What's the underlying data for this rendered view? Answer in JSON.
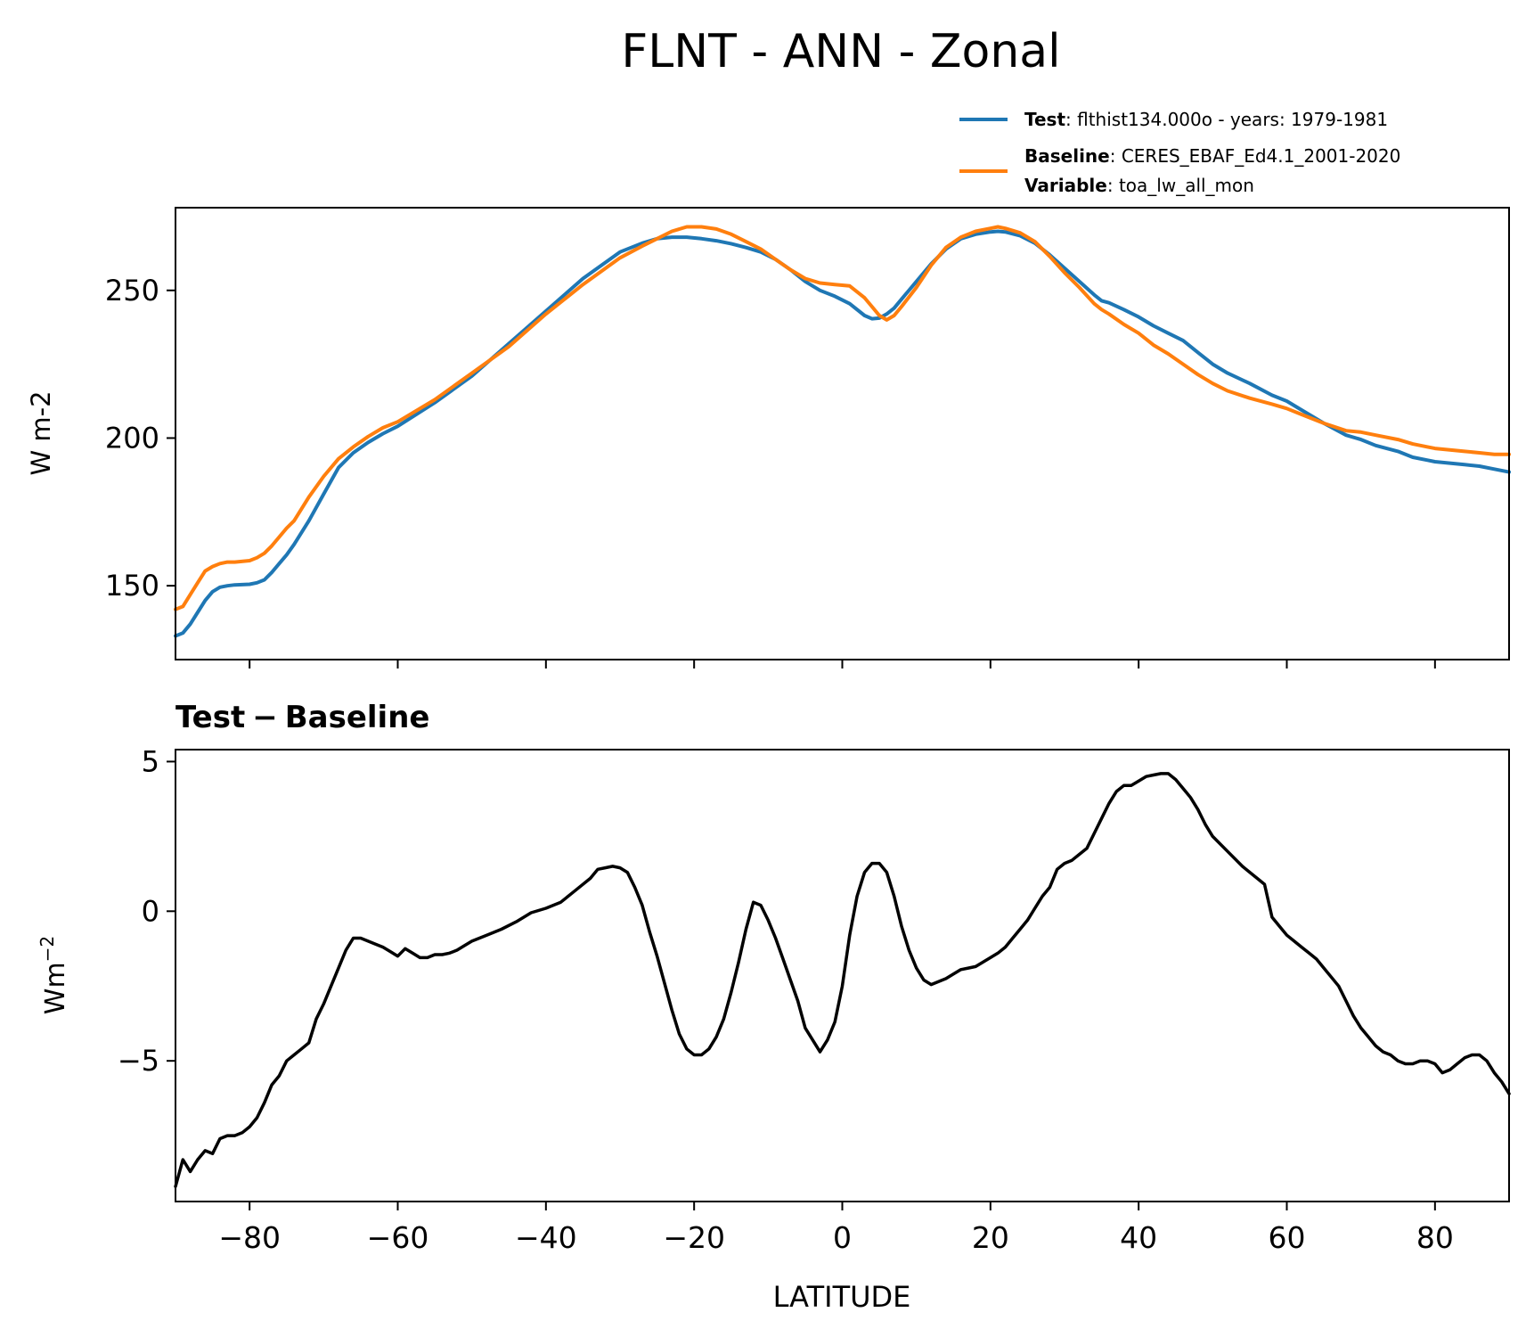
{
  "figure": {
    "title": "FLNT - ANN - Zonal"
  },
  "legend": {
    "test_label": "Test",
    "test_text": ": flthist134.000o - years: 1979-1981",
    "baseline_label": "Baseline",
    "baseline_text": ": CERES_EBAF_Ed4.1_2001-2020",
    "variable_label": "Variable",
    "variable_text": ": toa_lw_all_mon"
  },
  "chart_data": [
    {
      "type": "line",
      "ylabel": "W m-2",
      "xlim": [
        -90,
        90
      ],
      "ylim": [
        125,
        278
      ],
      "yticks": [
        150,
        200,
        250
      ],
      "xticks": [
        -80,
        -60,
        -40,
        -20,
        0,
        20,
        40,
        60,
        80
      ],
      "show_xticklabels": false,
      "legend_placement": "above-right",
      "series": [
        {
          "name": "Test",
          "color": "#1f77b4",
          "x": [
            -90,
            -89,
            -88,
            -87,
            -86,
            -85,
            -84,
            -83,
            -82,
            -80,
            -79,
            -78,
            -77,
            -76,
            -75,
            -74,
            -72,
            -70,
            -68,
            -66,
            -64,
            -62,
            -60,
            -55,
            -50,
            -45,
            -40,
            -35,
            -30,
            -27,
            -25,
            -23,
            -21,
            -19,
            -17,
            -15,
            -13,
            -11,
            -9,
            -7,
            -5,
            -3,
            -1,
            1,
            3,
            4,
            5,
            6,
            7,
            8,
            10,
            12,
            14,
            16,
            18,
            20,
            21,
            22,
            24,
            26,
            28,
            30,
            32,
            34,
            35,
            36,
            38,
            40,
            42,
            44,
            46,
            48,
            50,
            52,
            55,
            58,
            60,
            62,
            65,
            68,
            70,
            72,
            75,
            77,
            79,
            80,
            82,
            84,
            86,
            88,
            90
          ],
          "values": [
            133,
            134,
            137,
            141,
            145,
            148,
            149.5,
            150,
            150.3,
            150.5,
            151,
            152,
            154.5,
            157.5,
            160.5,
            164,
            172,
            181,
            190,
            195,
            198.5,
            201.5,
            204,
            212,
            221,
            232,
            243,
            254,
            263,
            266,
            267.5,
            268,
            268,
            267.5,
            266.8,
            265.8,
            264.5,
            263,
            260.5,
            257,
            253,
            250,
            248,
            245.5,
            241.5,
            240.4,
            240.6,
            242,
            244,
            247,
            253,
            259,
            264,
            267.5,
            269,
            269.8,
            270,
            269.8,
            268.5,
            266,
            262,
            257.5,
            253,
            248.5,
            246.5,
            245.8,
            243.5,
            241,
            238,
            235.5,
            233,
            229,
            225,
            222,
            218.5,
            214.5,
            212.5,
            209.5,
            205,
            201,
            199.5,
            197.5,
            195.5,
            193.5,
            192.5,
            192,
            191.5,
            191,
            190.5,
            189.5,
            188.5
          ]
        },
        {
          "name": "Baseline",
          "color": "#ff7f0e",
          "x": [
            -90,
            -89,
            -88,
            -87,
            -86,
            -85,
            -84,
            -83,
            -82,
            -80,
            -79,
            -78,
            -77,
            -76,
            -75,
            -74,
            -72,
            -70,
            -68,
            -66,
            -64,
            -62,
            -60,
            -55,
            -50,
            -45,
            -40,
            -35,
            -30,
            -27,
            -25,
            -23,
            -21,
            -19,
            -17,
            -15,
            -13,
            -11,
            -9,
            -7,
            -5,
            -3,
            -1,
            1,
            3,
            4,
            5,
            6,
            7,
            8,
            10,
            12,
            14,
            16,
            18,
            20,
            21,
            22,
            24,
            26,
            28,
            30,
            32,
            34,
            35,
            36,
            38,
            40,
            42,
            44,
            46,
            48,
            50,
            52,
            55,
            58,
            60,
            62,
            65,
            68,
            70,
            72,
            75,
            77,
            79,
            80,
            82,
            84,
            86,
            88,
            90
          ],
          "values": [
            142,
            143,
            147,
            151,
            155,
            156.5,
            157.5,
            158,
            158,
            158.5,
            159.5,
            161,
            163.5,
            166.5,
            169.5,
            172,
            180,
            187,
            193,
            197,
            200.5,
            203.5,
            205.5,
            213,
            222,
            231,
            242,
            252,
            261,
            265,
            267.5,
            270,
            271.5,
            271.5,
            270.8,
            269,
            266.5,
            264,
            260.5,
            257,
            254,
            252.5,
            252,
            251.5,
            247.5,
            244.5,
            241.5,
            240,
            241.5,
            244.5,
            251,
            258.5,
            264.5,
            268,
            270,
            271,
            271.5,
            271,
            269.5,
            266.5,
            261.5,
            256,
            251,
            245.5,
            243.5,
            242,
            238.5,
            235.5,
            231.5,
            228.5,
            225,
            221.5,
            218.5,
            216,
            213.5,
            211.5,
            210,
            208,
            205,
            202.5,
            202,
            201,
            199.5,
            198,
            197,
            196.5,
            196,
            195.5,
            195,
            194.5,
            194.5
          ]
        }
      ]
    },
    {
      "type": "line",
      "title": "Test - Baseline",
      "title_left": "Test",
      "title_op": "−",
      "title_right": "Baseline",
      "ylabel": "Wm",
      "ylabel_exp": "−2",
      "xlabel": "LATITUDE",
      "xlim": [
        -90,
        90
      ],
      "ylim": [
        -9.7,
        5.4
      ],
      "yticks": [
        -5,
        0,
        5
      ],
      "ytick_labels": [
        "−5",
        "0",
        "5"
      ],
      "xticks": [
        -80,
        -60,
        -40,
        -20,
        0,
        20,
        40,
        60,
        80
      ],
      "xtick_labels": [
        "−80",
        "−60",
        "−40",
        "−20",
        "0",
        "20",
        "40",
        "60",
        "80"
      ],
      "series": [
        {
          "name": "Test - Baseline",
          "color": "#000000",
          "x": [
            -90,
            -89,
            -88,
            -87,
            -86,
            -85,
            -84,
            -83,
            -82,
            -81,
            -80,
            -79,
            -78,
            -77,
            -76,
            -75,
            -74,
            -73,
            -72,
            -71,
            -70,
            -69,
            -68,
            -67,
            -66,
            -65,
            -64,
            -63,
            -62,
            -61,
            -60,
            -59,
            -58,
            -57,
            -56,
            -55,
            -54,
            -53,
            -52,
            -51,
            -50,
            -48,
            -46,
            -44,
            -42,
            -40,
            -38,
            -36,
            -34,
            -33,
            -32,
            -31,
            -30,
            -29,
            -28,
            -27,
            -26,
            -25,
            -24,
            -23,
            -22,
            -21,
            -20,
            -19,
            -18,
            -17,
            -16,
            -15,
            -14,
            -13,
            -12,
            -11,
            -10,
            -9,
            -8,
            -7,
            -6,
            -5,
            -4,
            -3,
            -2,
            -1,
            0,
            1,
            2,
            3,
            4,
            5,
            6,
            7,
            8,
            9,
            10,
            11,
            12,
            13,
            14,
            15,
            16,
            17,
            18,
            19,
            20,
            21,
            22,
            23,
            24,
            25,
            26,
            27,
            28,
            29,
            30,
            31,
            32,
            33,
            34,
            35,
            36,
            37,
            38,
            39,
            40,
            41,
            42,
            43,
            44,
            45,
            46,
            47,
            48,
            49,
            50,
            52,
            54,
            56,
            57,
            58,
            59,
            60,
            61,
            62,
            63,
            64,
            65,
            66,
            67,
            68,
            69,
            70,
            71,
            72,
            73,
            74,
            75,
            76,
            77,
            78,
            79,
            80,
            81,
            82,
            83,
            84,
            85,
            86,
            87,
            88,
            89,
            90
          ],
          "values": [
            -9.2,
            -8.3,
            -8.7,
            -8.3,
            -8.0,
            -8.1,
            -7.6,
            -7.5,
            -7.5,
            -7.4,
            -7.2,
            -6.9,
            -6.4,
            -5.8,
            -5.5,
            -5.0,
            -4.8,
            -4.6,
            -4.4,
            -3.6,
            -3.1,
            -2.5,
            -1.9,
            -1.3,
            -0.9,
            -0.9,
            -1.0,
            -1.1,
            -1.2,
            -1.35,
            -1.5,
            -1.25,
            -1.4,
            -1.55,
            -1.55,
            -1.45,
            -1.45,
            -1.4,
            -1.3,
            -1.15,
            -1.0,
            -0.8,
            -0.6,
            -0.35,
            -0.05,
            0.1,
            0.3,
            0.7,
            1.1,
            1.4,
            1.45,
            1.5,
            1.45,
            1.3,
            0.8,
            0.2,
            -0.7,
            -1.5,
            -2.4,
            -3.3,
            -4.1,
            -4.6,
            -4.8,
            -4.8,
            -4.6,
            -4.2,
            -3.6,
            -2.7,
            -1.7,
            -0.6,
            0.3,
            0.2,
            -0.3,
            -0.9,
            -1.6,
            -2.3,
            -3.0,
            -3.9,
            -4.3,
            -4.7,
            -4.3,
            -3.7,
            -2.5,
            -0.8,
            0.5,
            1.3,
            1.6,
            1.6,
            1.3,
            0.5,
            -0.5,
            -1.3,
            -1.9,
            -2.3,
            -2.45,
            -2.35,
            -2.25,
            -2.1,
            -1.95,
            -1.9,
            -1.85,
            -1.7,
            -1.55,
            -1.4,
            -1.2,
            -0.9,
            -0.6,
            -0.3,
            0.1,
            0.5,
            0.8,
            1.4,
            1.6,
            1.7,
            1.9,
            2.1,
            2.6,
            3.1,
            3.6,
            4.0,
            4.2,
            4.2,
            4.35,
            4.5,
            4.55,
            4.6,
            4.6,
            4.4,
            4.1,
            3.8,
            3.4,
            2.9,
            2.5,
            2.0,
            1.5,
            1.1,
            0.9,
            -0.2,
            -0.5,
            -0.8,
            -1.0,
            -1.2,
            -1.4,
            -1.6,
            -1.9,
            -2.2,
            -2.5,
            -3.0,
            -3.5,
            -3.9,
            -4.2,
            -4.5,
            -4.7,
            -4.8,
            -5.0,
            -5.1,
            -5.1,
            -5.0,
            -5.0,
            -5.1,
            -5.4,
            -5.3,
            -5.1,
            -4.9,
            -4.8,
            -4.8,
            -5.0,
            -5.4,
            -5.7,
            -6.1
          ]
        }
      ]
    }
  ]
}
